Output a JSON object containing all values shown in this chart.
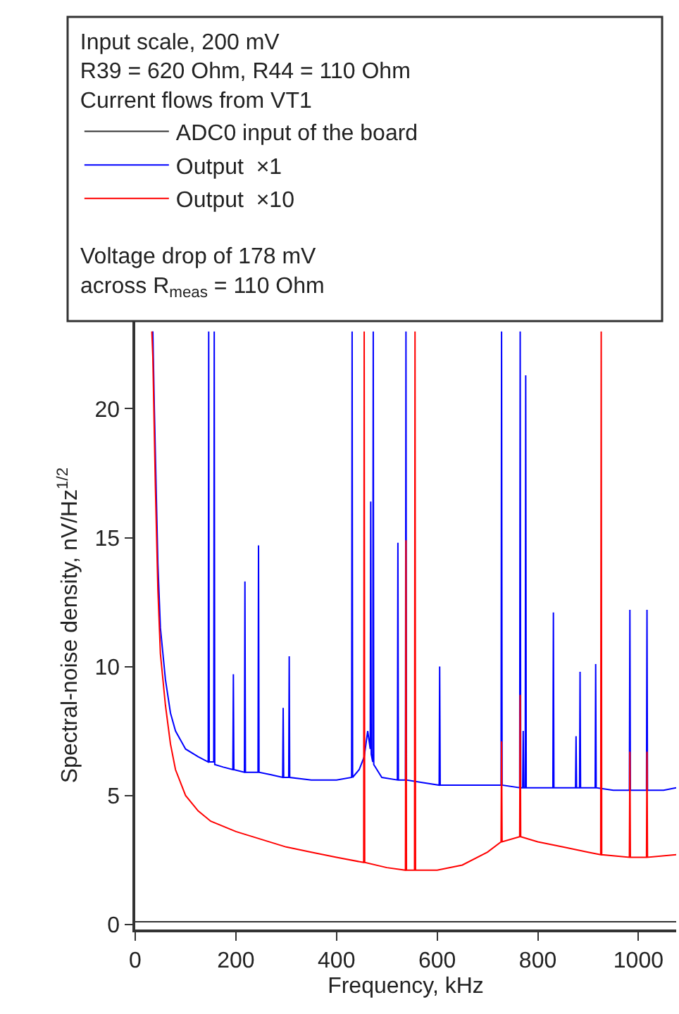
{
  "chart_data": {
    "type": "line",
    "xlabel": "Frequency, kHz",
    "ylabel": "Spectral-noise density, nV/Hz$^{1/2}$",
    "legend_title": "Input scale, 200 mV\nR39 = 620 Ohm, R44 = 110 Ohm\nCurrent flows from VT1",
    "annotations": [
      "Voltage drop of 178 mV\nacross R$_{meas}$ = 110 Ohm"
    ],
    "xlim": [
      0,
      1075
    ],
    "xticks": [
      0,
      200,
      400,
      600,
      800,
      1000
    ],
    "ylim": [
      -0.2,
      23.4
    ],
    "yticks": [
      0,
      5,
      10,
      15,
      20
    ],
    "legend": "top left",
    "marker": "none",
    "line_style": "solid",
    "series": [
      {
        "name": "ADC0 input of the board",
        "color": "#333333",
        "x": [
          0,
          200,
          400,
          600,
          800,
          1000,
          1075
        ],
        "values": [
          0.1,
          0.1,
          0.1,
          0.1,
          0.1,
          0.1,
          0.1
        ]
      },
      {
        "name": "Output  ×1",
        "color": "#0000ff",
        "x": [
          35,
          38,
          45,
          50,
          60,
          70,
          80,
          100,
          125,
          145,
          146,
          147,
          156,
          157,
          158,
          175,
          194,
          195,
          196,
          217,
          218,
          219,
          244,
          245,
          246,
          270,
          293,
          294,
          295,
          305,
          306,
          307,
          350,
          400,
          430,
          431,
          432,
          445,
          455,
          462,
          467,
          468,
          469,
          472,
          473,
          474,
          490,
          521,
          522,
          523,
          537,
          538,
          539,
          570,
          604,
          605,
          606,
          650,
          700,
          727,
          728,
          729,
          764,
          765,
          766,
          770,
          771,
          772,
          775,
          776,
          777,
          800,
          830,
          831,
          832,
          875,
          876,
          877,
          883,
          884,
          885,
          914,
          915,
          916,
          950,
          982,
          983,
          984,
          1016,
          1017,
          1018,
          1050,
          1075
        ],
        "values": [
          23,
          20,
          14,
          11.5,
          9.5,
          8.2,
          7.5,
          6.8,
          6.5,
          6.3,
          23,
          6.3,
          6.3,
          23,
          6.2,
          6.1,
          6.0,
          9.7,
          6.0,
          5.9,
          13.3,
          5.9,
          5.9,
          14.7,
          5.9,
          5.8,
          5.7,
          8.4,
          5.7,
          5.7,
          10.4,
          5.7,
          5.6,
          5.6,
          5.7,
          23,
          5.7,
          6.0,
          6.5,
          7.5,
          6.8,
          16.4,
          6.6,
          6.3,
          23,
          6.2,
          5.7,
          5.6,
          14.8,
          5.6,
          5.6,
          23,
          5.6,
          5.5,
          5.4,
          10.0,
          5.4,
          5.4,
          5.4,
          5.4,
          23,
          5.4,
          5.3,
          23,
          5.3,
          5.3,
          7.5,
          5.3,
          5.3,
          21.3,
          5.3,
          5.3,
          5.3,
          12.1,
          5.3,
          5.3,
          7.3,
          5.3,
          5.3,
          9.8,
          5.3,
          5.3,
          10.1,
          5.3,
          5.2,
          5.2,
          12.2,
          5.2,
          5.2,
          12.2,
          5.2,
          5.2,
          5.3
        ]
      },
      {
        "name": "Output  ×10",
        "color": "#ff0000",
        "x": [
          33,
          35,
          40,
          45,
          50,
          60,
          70,
          80,
          100,
          125,
          150,
          200,
          250,
          300,
          350,
          400,
          454,
          455,
          456,
          500,
          537,
          538,
          539,
          555,
          556,
          557,
          600,
          650,
          700,
          727,
          728,
          729,
          764,
          765,
          766,
          800,
          850,
          900,
          925,
          926,
          927,
          982,
          983,
          984,
          1016,
          1017,
          1018,
          1075
        ],
        "values": [
          23,
          22,
          17,
          13,
          10.5,
          8.5,
          7,
          6,
          5,
          4.4,
          4.0,
          3.6,
          3.3,
          3.0,
          2.8,
          2.6,
          2.4,
          23,
          2.4,
          2.2,
          2.1,
          14.9,
          2.1,
          2.1,
          23,
          2.1,
          2.1,
          2.3,
          2.8,
          3.2,
          7.1,
          3.2,
          3.4,
          8.9,
          3.4,
          3.2,
          3.0,
          2.8,
          2.7,
          23,
          2.7,
          2.6,
          6.7,
          2.6,
          2.6,
          6.7,
          2.6,
          2.7
        ]
      }
    ]
  }
}
